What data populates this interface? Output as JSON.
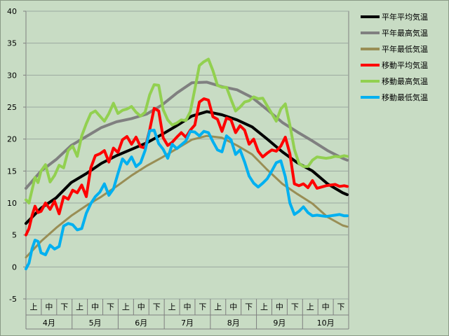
{
  "chart_data": {
    "type": "line",
    "title": "",
    "xlabel": "",
    "ylabel": "",
    "ylim": [
      -5,
      40
    ],
    "yticks": [
      -5,
      0,
      5,
      10,
      15,
      20,
      25,
      30,
      35,
      40
    ],
    "grid": true,
    "legend_position": "right",
    "months": [
      "4月",
      "5月",
      "6月",
      "7月",
      "8月",
      "9月",
      "10月"
    ],
    "periods": [
      "上",
      "中",
      "下"
    ],
    "x_unit": "day index from April 1",
    "series": [
      {
        "name": "平年平均気温",
        "color": "#000000",
        "width": 4,
        "x": [
          0,
          10,
          20,
          30,
          40,
          50,
          60,
          70,
          80,
          90,
          100,
          110,
          120,
          130,
          140,
          150,
          160,
          170,
          180,
          190,
          200,
          210,
          213
        ],
        "values": [
          6.8,
          9.2,
          10.8,
          13.2,
          14.6,
          16.2,
          17.4,
          18.4,
          19.4,
          20.7,
          22.1,
          23.6,
          24.3,
          23.8,
          23.0,
          21.9,
          20.0,
          18.0,
          16.3,
          15.0,
          13.0,
          11.6,
          11.3
        ]
      },
      {
        "name": "平年最高気温",
        "color": "#808080",
        "width": 4,
        "x": [
          0,
          10,
          20,
          30,
          40,
          50,
          60,
          70,
          80,
          90,
          100,
          110,
          120,
          130,
          140,
          150,
          160,
          170,
          180,
          190,
          200,
          210,
          213
        ],
        "values": [
          12.3,
          15.0,
          16.8,
          19.0,
          20.4,
          21.8,
          22.7,
          23.2,
          23.9,
          25.3,
          27.2,
          28.8,
          28.9,
          28.2,
          27.7,
          26.5,
          24.6,
          22.6,
          21.1,
          19.7,
          18.2,
          17.0,
          16.7
        ]
      },
      {
        "name": "平年最低気温",
        "color": "#998e55",
        "width": 3,
        "x": [
          0,
          10,
          20,
          30,
          40,
          50,
          60,
          70,
          80,
          90,
          100,
          110,
          120,
          130,
          140,
          150,
          160,
          170,
          180,
          190,
          200,
          210,
          213
        ],
        "values": [
          1.5,
          4.0,
          6.1,
          8.0,
          9.6,
          11.0,
          12.6,
          14.3,
          15.8,
          17.1,
          18.5,
          19.9,
          20.5,
          20.2,
          19.0,
          17.6,
          15.2,
          13.0,
          11.4,
          9.9,
          7.8,
          6.5,
          6.3
        ]
      },
      {
        "name": "移動平均気温",
        "color": "#ff0000",
        "width": 4,
        "x": [
          0,
          2,
          4,
          6,
          8,
          10,
          13,
          16,
          19,
          22,
          25,
          28,
          31,
          34,
          37,
          40,
          43,
          46,
          49,
          52,
          55,
          58,
          61,
          64,
          67,
          70,
          73,
          76,
          79,
          82,
          85,
          88,
          91,
          94,
          97,
          100,
          103,
          106,
          109,
          112,
          115,
          118,
          121,
          124,
          127,
          130,
          133,
          136,
          139,
          142,
          145,
          148,
          151,
          154,
          157,
          160,
          163,
          166,
          169,
          172,
          175,
          178,
          181,
          184,
          187,
          190,
          193,
          196,
          199,
          202,
          205,
          208,
          211,
          213
        ],
        "values": [
          5.0,
          6.0,
          8.0,
          9.5,
          8.5,
          8.7,
          10.0,
          9.0,
          10.3,
          8.3,
          11.0,
          10.6,
          12.0,
          11.6,
          12.8,
          11.0,
          15.5,
          17.4,
          17.7,
          18.2,
          16.4,
          18.6,
          17.9,
          19.9,
          20.4,
          19.2,
          20.3,
          18.8,
          18.6,
          21.4,
          24.8,
          24.4,
          20.2,
          19.0,
          19.5,
          20.3,
          21.0,
          20.3,
          21.4,
          22.2,
          25.8,
          26.3,
          26.1,
          23.5,
          23.1,
          21.2,
          23.3,
          23.0,
          21.0,
          22.1,
          21.4,
          19.2,
          20.0,
          18.1,
          17.2,
          17.8,
          18.3,
          18.1,
          18.9,
          20.3,
          17.7,
          13.0,
          12.7,
          13.0,
          12.4,
          13.5,
          12.3,
          12.5,
          12.7,
          12.8,
          12.9,
          12.6,
          12.7,
          12.6
        ]
      },
      {
        "name": "移動最高気温",
        "color": "#92d050",
        "width": 4,
        "x": [
          0,
          2,
          4,
          6,
          8,
          10,
          13,
          16,
          19,
          22,
          25,
          28,
          31,
          34,
          37,
          40,
          43,
          46,
          49,
          52,
          55,
          58,
          61,
          64,
          67,
          70,
          73,
          76,
          79,
          82,
          85,
          88,
          91,
          94,
          97,
          100,
          103,
          106,
          109,
          112,
          115,
          118,
          121,
          124,
          127,
          130,
          133,
          136,
          139,
          142,
          145,
          148,
          151,
          154,
          157,
          160,
          163,
          166,
          169,
          172,
          175,
          178,
          181,
          184,
          187,
          190,
          193,
          196,
          199,
          202,
          205,
          208,
          211,
          213
        ],
        "values": [
          10.5,
          10.0,
          12.0,
          14.0,
          13.2,
          15.0,
          16.0,
          13.3,
          14.3,
          15.9,
          15.5,
          18.2,
          18.9,
          17.3,
          20.5,
          22.4,
          24.0,
          24.4,
          23.6,
          22.8,
          24.0,
          25.6,
          24.0,
          24.5,
          24.7,
          25.1,
          24.2,
          23.6,
          24.2,
          26.9,
          28.5,
          28.4,
          24.6,
          23.0,
          22.2,
          22.5,
          23.0,
          22.9,
          24.3,
          27.8,
          31.5,
          32.1,
          32.5,
          30.7,
          28.4,
          28.1,
          28.1,
          26.2,
          24.4,
          25.0,
          25.8,
          26.0,
          26.6,
          26.3,
          26.4,
          25.2,
          24.0,
          22.8,
          24.7,
          25.5,
          22.2,
          18.4,
          16.2,
          15.7,
          15.7,
          16.7,
          17.2,
          17.1,
          17.0,
          17.1,
          17.3,
          17.2,
          17.4,
          17.3
        ]
      },
      {
        "name": "移動最低気温",
        "color": "#00b0f0",
        "width": 4,
        "x": [
          0,
          2,
          4,
          6,
          8,
          10,
          13,
          16,
          19,
          22,
          25,
          28,
          31,
          34,
          37,
          40,
          43,
          46,
          49,
          52,
          55,
          58,
          61,
          64,
          67,
          70,
          73,
          76,
          79,
          82,
          85,
          88,
          91,
          94,
          97,
          100,
          103,
          106,
          109,
          112,
          115,
          118,
          121,
          124,
          127,
          130,
          133,
          136,
          139,
          142,
          145,
          148,
          151,
          154,
          157,
          160,
          163,
          166,
          169,
          172,
          175,
          178,
          181,
          184,
          187,
          190,
          193,
          196,
          199,
          202,
          205,
          208,
          211,
          213
        ],
        "values": [
          -0.3,
          0.6,
          2.8,
          4.2,
          4.0,
          2.2,
          1.9,
          3.4,
          2.8,
          3.2,
          6.4,
          6.8,
          6.6,
          5.8,
          6.0,
          8.4,
          9.9,
          11.0,
          11.7,
          13.0,
          11.2,
          12.2,
          14.6,
          16.9,
          16.1,
          17.2,
          15.7,
          16.3,
          18.2,
          21.3,
          21.4,
          19.3,
          18.4,
          17.0,
          19.2,
          18.5,
          19.1,
          19.7,
          21.2,
          21.1,
          20.5,
          21.2,
          21.0,
          19.6,
          18.3,
          18.0,
          20.5,
          19.9,
          17.6,
          18.3,
          16.4,
          14.2,
          13.1,
          12.5,
          13.1,
          13.8,
          15.0,
          16.3,
          16.6,
          14.1,
          10.0,
          8.2,
          8.7,
          9.4,
          8.5,
          8.0,
          8.1,
          8.0,
          7.9,
          8.0,
          8.1,
          8.2,
          8.0,
          8.0
        ]
      }
    ]
  }
}
